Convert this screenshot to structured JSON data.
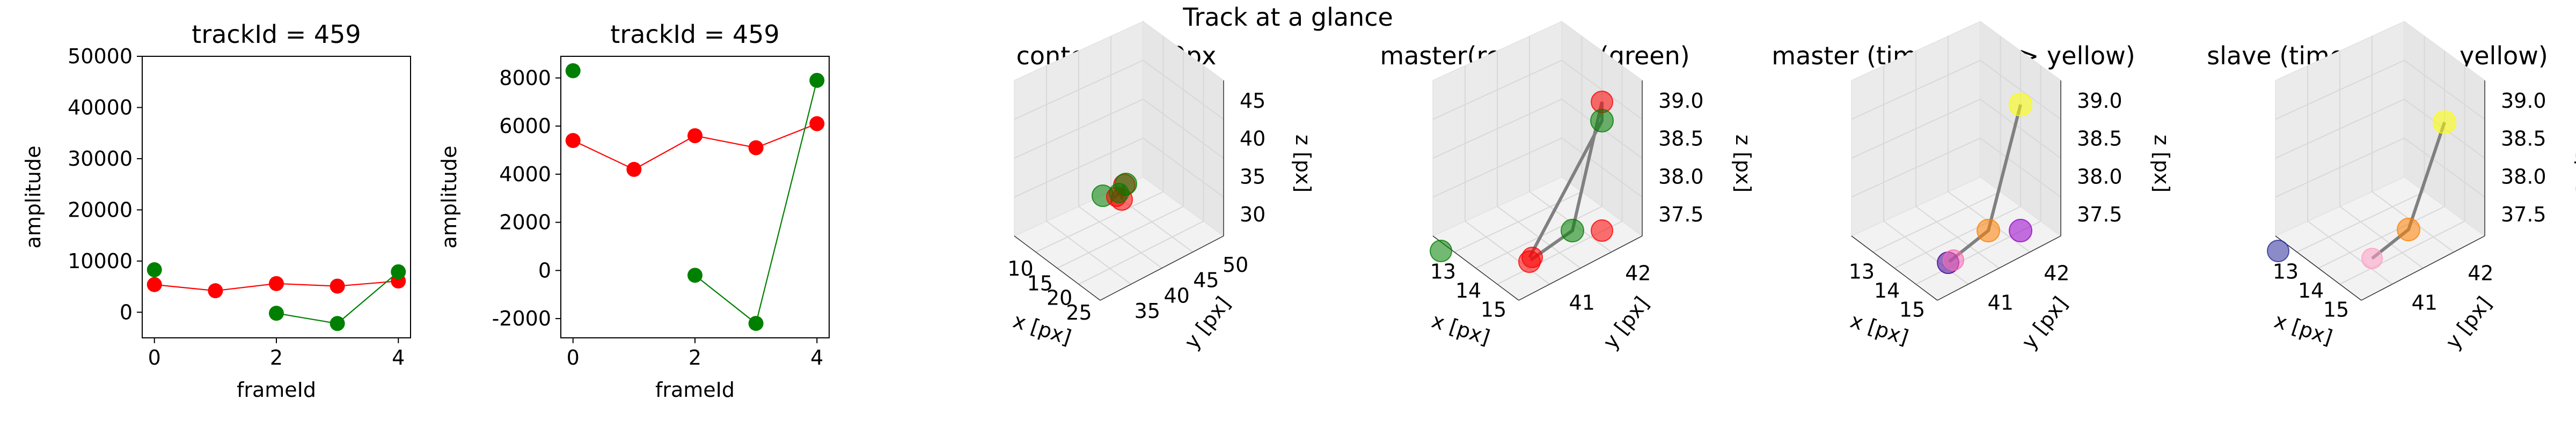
{
  "figure": {
    "suptitle": "Track at a glance"
  },
  "colors": {
    "series_master": "#ff0000",
    "series_slave": "#008000",
    "axis": "#000000",
    "pane": "#f2f2f2",
    "grid": "#d8d8d8",
    "track_line": "#808080"
  },
  "chart_data": [
    {
      "type": "line",
      "title": "trackId = 459",
      "xlabel": "frameId",
      "ylabel": "amplitude",
      "xlim": [
        -0.2,
        4.2
      ],
      "ylim": [
        -5000,
        50000
      ],
      "xticks": [
        0,
        2,
        4
      ],
      "yticks": [
        0,
        10000,
        20000,
        30000,
        40000,
        50000
      ],
      "series": [
        {
          "color": "#ff0000",
          "x": [
            0,
            1,
            2,
            3,
            4
          ],
          "y": [
            5400,
            4200,
            5600,
            5100,
            6100
          ]
        },
        {
          "color": "#008000",
          "x": [
            0,
            2,
            3,
            4
          ],
          "y": [
            8300,
            -200,
            -2200,
            7900
          ],
          "line_from_index": 1
        }
      ]
    },
    {
      "type": "line",
      "title": "trackId = 459",
      "xlabel": "frameId",
      "ylabel": "amplitude",
      "xlim": [
        -0.2,
        4.2
      ],
      "ylim": [
        -2800,
        8900
      ],
      "xticks": [
        0,
        2,
        4
      ],
      "yticks": [
        -2000,
        0,
        2000,
        4000,
        6000,
        8000
      ],
      "series": [
        {
          "color": "#ff0000",
          "x": [
            0,
            1,
            2,
            3,
            4
          ],
          "y": [
            5400,
            4200,
            5600,
            5100,
            6100
          ]
        },
        {
          "color": "#008000",
          "x": [
            0,
            2,
            3,
            4
          ],
          "y": [
            8300,
            -200,
            -2200,
            7900
          ],
          "line_from_index": 1
        }
      ]
    },
    {
      "type": "scatter3d",
      "title": "context +- 10px",
      "xlabel": "x [px]",
      "ylabel": "y [px]",
      "zlabel": "z [px]",
      "xticks": [
        "10",
        "15",
        "20",
        "25"
      ],
      "yticks": [
        "35",
        "40",
        "45",
        "50"
      ],
      "zticks": [
        "30",
        "35",
        "40",
        "45"
      ]
    },
    {
      "type": "scatter3d",
      "title": "master(red) slave(green)",
      "xlabel": "x [px]",
      "ylabel": "y [px]",
      "zlabel": "z [px]",
      "xticks": [
        "13",
        "14",
        "15"
      ],
      "yticks": [
        "41",
        "42"
      ],
      "zticks": [
        "37.5",
        "38.0",
        "38.5",
        "39.0"
      ]
    },
    {
      "type": "scatter3d",
      "title": "master (time: blue -> yellow)",
      "xlabel": "x [px]",
      "ylabel": "y [px]",
      "zlabel": "z [px]",
      "xticks": [
        "13",
        "14",
        "15"
      ],
      "yticks": [
        "41",
        "42"
      ],
      "zticks": [
        "37.5",
        "38.0",
        "38.5",
        "39.0"
      ]
    },
    {
      "type": "scatter3d",
      "title": "slave (time: blue -> yellow)",
      "xlabel": "x [px]",
      "ylabel": "y [px]",
      "zlabel": "z [px]",
      "xticks": [
        "13",
        "14",
        "15"
      ],
      "yticks": [
        "41",
        "42"
      ],
      "zticks": [
        "37.5",
        "38.0",
        "38.5",
        "39.0"
      ]
    }
  ]
}
